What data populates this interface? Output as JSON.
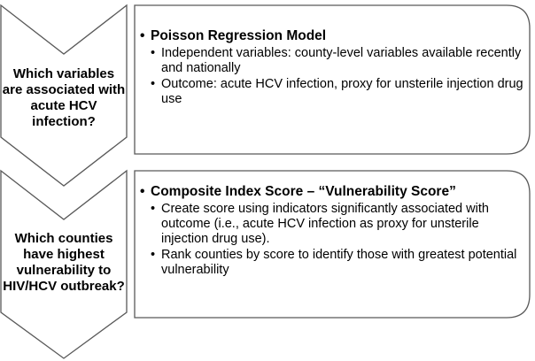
{
  "colors": {
    "shape_fill": "#ffffff",
    "shape_stroke": "#595959",
    "text": "#000000"
  },
  "steps": [
    {
      "question": "Which variables are associated with acute HCV infection?",
      "title": "Poisson Regression Model",
      "bullets": [
        "Independent variables: county-level variables available recently and nationally",
        "Outcome: acute HCV infection, proxy for unsterile injection drug use"
      ]
    },
    {
      "question": "Which counties have highest vulnerability to HIV/HCV outbreak?",
      "title": "Composite Index Score – “Vulnerability Score”",
      "bullets": [
        "Create score using indicators significantly associated with outcome (i.e., acute HCV infection as proxy for unsterile injection drug use).",
        "Rank counties by score to identify those with greatest potential vulnerability"
      ]
    }
  ]
}
